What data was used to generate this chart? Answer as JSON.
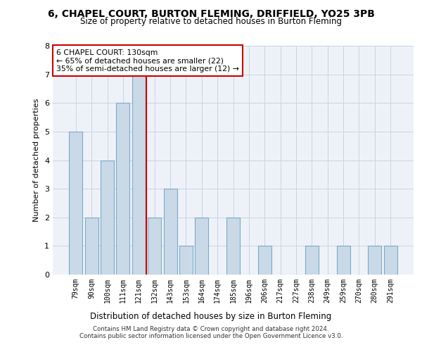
{
  "title": "6, CHAPEL COURT, BURTON FLEMING, DRIFFIELD, YO25 3PB",
  "subtitle": "Size of property relative to detached houses in Burton Fleming",
  "xlabel": "Distribution of detached houses by size in Burton Fleming",
  "ylabel": "Number of detached properties",
  "bar_labels": [
    "79sqm",
    "90sqm",
    "100sqm",
    "111sqm",
    "121sqm",
    "132sqm",
    "143sqm",
    "153sqm",
    "164sqm",
    "174sqm",
    "185sqm",
    "196sqm",
    "206sqm",
    "217sqm",
    "227sqm",
    "238sqm",
    "249sqm",
    "259sqm",
    "270sqm",
    "280sqm",
    "291sqm"
  ],
  "bar_values": [
    5,
    2,
    4,
    6,
    7,
    2,
    3,
    1,
    2,
    0,
    2,
    0,
    1,
    0,
    0,
    1,
    0,
    1,
    0,
    1,
    1
  ],
  "bar_color": "#c9d9e8",
  "bar_edge_color": "#7aaac8",
  "vline_x": 4.5,
  "vline_color": "#cc0000",
  "annotation_text": "6 CHAPEL COURT: 130sqm\n← 65% of detached houses are smaller (22)\n35% of semi-detached houses are larger (12) →",
  "annotation_box_color": "#ffffff",
  "annotation_box_edge": "#cc0000",
  "ylim": [
    0,
    8
  ],
  "yticks": [
    0,
    1,
    2,
    3,
    4,
    5,
    6,
    7,
    8
  ],
  "footer_line1": "Contains HM Land Registry data © Crown copyright and database right 2024.",
  "footer_line2": "Contains public sector information licensed under the Open Government Licence v3.0.",
  "plot_bg_color": "#eef2f8"
}
